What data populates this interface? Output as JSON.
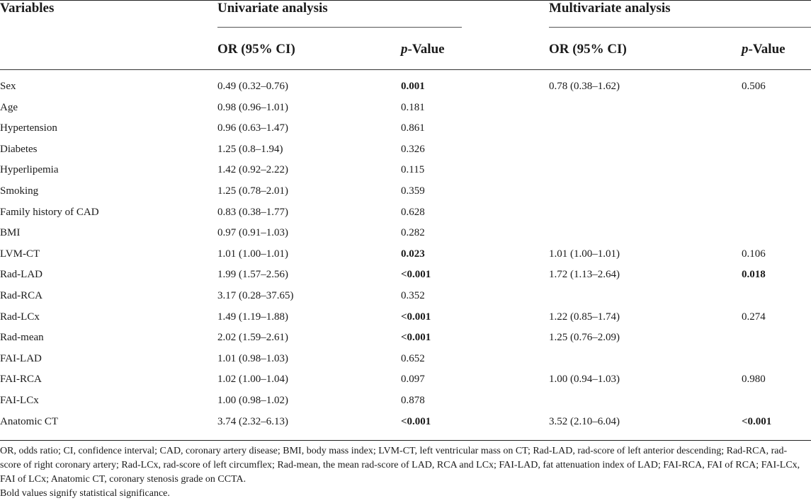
{
  "header": {
    "variables": "Variables",
    "univariate": "Univariate analysis",
    "multivariate": "Multivariate analysis",
    "or_label": "OR (95% CI)",
    "p_label_italic": "p",
    "p_label_rest": "-Value"
  },
  "rows": [
    {
      "var": "Sex",
      "uni_or": "0.49 (0.32–0.76)",
      "uni_p": "0.001",
      "uni_p_bold": true,
      "multi_or": "0.78 (0.38–1.62)",
      "multi_p": "0.506",
      "multi_p_bold": false
    },
    {
      "var": "Age",
      "uni_or": "0.98 (0.96–1.01)",
      "uni_p": "0.181",
      "uni_p_bold": false,
      "multi_or": "",
      "multi_p": "",
      "multi_p_bold": false
    },
    {
      "var": "Hypertension",
      "uni_or": "0.96 (0.63–1.47)",
      "uni_p": "0.861",
      "uni_p_bold": false,
      "multi_or": "",
      "multi_p": "",
      "multi_p_bold": false
    },
    {
      "var": "Diabetes",
      "uni_or": "1.25 (0.8–1.94)",
      "uni_p": "0.326",
      "uni_p_bold": false,
      "multi_or": "",
      "multi_p": "",
      "multi_p_bold": false
    },
    {
      "var": "Hyperlipemia",
      "uni_or": "1.42 (0.92–2.22)",
      "uni_p": "0.115",
      "uni_p_bold": false,
      "multi_or": "",
      "multi_p": "",
      "multi_p_bold": false
    },
    {
      "var": "Smoking",
      "uni_or": "1.25 (0.78–2.01)",
      "uni_p": "0.359",
      "uni_p_bold": false,
      "multi_or": "",
      "multi_p": "",
      "multi_p_bold": false
    },
    {
      "var": "Family history of CAD",
      "uni_or": "0.83 (0.38–1.77)",
      "uni_p": "0.628",
      "uni_p_bold": false,
      "multi_or": "",
      "multi_p": "",
      "multi_p_bold": false
    },
    {
      "var": "BMI",
      "uni_or": "0.97 (0.91–1.03)",
      "uni_p": "0.282",
      "uni_p_bold": false,
      "multi_or": "",
      "multi_p": "",
      "multi_p_bold": false
    },
    {
      "var": "LVM-CT",
      "uni_or": "1.01 (1.00–1.01)",
      "uni_p": "0.023",
      "uni_p_bold": true,
      "multi_or": "1.01 (1.00–1.01)",
      "multi_p": "0.106",
      "multi_p_bold": false
    },
    {
      "var": "Rad-LAD",
      "uni_or": "1.99 (1.57–2.56)",
      "uni_p": "<0.001",
      "uni_p_bold": true,
      "multi_or": "1.72 (1.13–2.64)",
      "multi_p": "0.018",
      "multi_p_bold": true
    },
    {
      "var": "Rad-RCA",
      "uni_or": "3.17 (0.28–37.65)",
      "uni_p": "0.352",
      "uni_p_bold": false,
      "multi_or": "",
      "multi_p": "",
      "multi_p_bold": false
    },
    {
      "var": "Rad-LCx",
      "uni_or": "1.49 (1.19–1.88)",
      "uni_p": "<0.001",
      "uni_p_bold": true,
      "multi_or": "1.22 (0.85–1.74)",
      "multi_p": "0.274",
      "multi_p_bold": false
    },
    {
      "var": "Rad-mean",
      "uni_or": "2.02 (1.59–2.61)",
      "uni_p": "<0.001",
      "uni_p_bold": true,
      "multi_or": "1.25 (0.76–2.09)",
      "multi_p": "",
      "multi_p_bold": false
    },
    {
      "var": "FAI-LAD",
      "uni_or": "1.01 (0.98–1.03)",
      "uni_p": "0.652",
      "uni_p_bold": false,
      "multi_or": "",
      "multi_p": "",
      "multi_p_bold": false
    },
    {
      "var": "FAI-RCA",
      "uni_or": "1.02 (1.00–1.04)",
      "uni_p": "0.097",
      "uni_p_bold": false,
      "multi_or": "1.00 (0.94–1.03)",
      "multi_p": "0.980",
      "multi_p_bold": false
    },
    {
      "var": "FAI-LCx",
      "uni_or": "1.00 (0.98–1.02)",
      "uni_p": "0.878",
      "uni_p_bold": false,
      "multi_or": "",
      "multi_p": "",
      "multi_p_bold": false
    },
    {
      "var": "Anatomic CT",
      "uni_or": "3.74 (2.32–6.13)",
      "uni_p": "<0.001",
      "uni_p_bold": true,
      "multi_or": "3.52 (2.10–6.04)",
      "multi_p": "<0.001",
      "multi_p_bold": true
    }
  ],
  "footnotes": {
    "abbreviations": "OR, odds ratio; CI, confidence interval; CAD, coronary artery disease; BMI, body mass index; LVM-CT, left ventricular mass on CT; Rad-LAD, rad-score of left anterior descending; Rad-RCA, rad-score of right coronary artery; Rad-LCx, rad-score of left circumflex; Rad-mean, the mean rad-score of LAD, RCA and LCx; FAI-LAD, fat attenuation index of LAD; FAI-RCA, FAI of RCA; FAI-LCx, FAI of LCx; Anatomic CT, coronary stenosis grade on CCTA.",
    "bold_note": "Bold values signify statistical significance."
  }
}
